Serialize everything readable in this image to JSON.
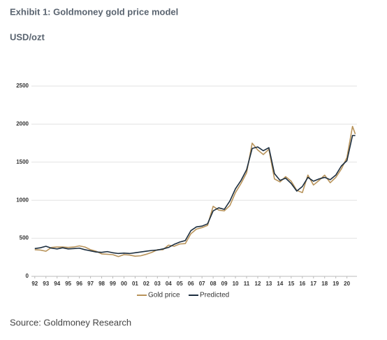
{
  "chart_data": {
    "type": "line",
    "title": "Exhibit 1: Goldmoney gold price model",
    "subtitle": "USD/ozt",
    "source": "Source: Goldmoney Research",
    "x": [
      1992,
      1992.5,
      1993,
      1993.5,
      1994,
      1994.5,
      1995,
      1995.5,
      1996,
      1996.5,
      1997,
      1997.5,
      1998,
      1998.5,
      1999,
      1999.5,
      2000,
      2000.5,
      2001,
      2001.5,
      2002,
      2002.5,
      2003,
      2003.5,
      2004,
      2004.5,
      2005,
      2005.5,
      2006,
      2006.5,
      2007,
      2007.5,
      2008,
      2008.5,
      2009,
      2009.5,
      2010,
      2010.5,
      2011,
      2011.5,
      2012,
      2012.5,
      2013,
      2013.5,
      2014,
      2014.5,
      2015,
      2015.5,
      2016,
      2016.5,
      2017,
      2017.5,
      2018,
      2018.5,
      2019,
      2019.5,
      2020,
      2020.5,
      2020.75
    ],
    "series": [
      {
        "name": "Gold price",
        "color": "#b8935a",
        "values": [
          350,
          345,
          330,
          380,
          385,
          385,
          380,
          385,
          400,
          385,
          350,
          330,
          295,
          290,
          285,
          260,
          285,
          280,
          265,
          270,
          290,
          315,
          350,
          350,
          410,
          395,
          425,
          430,
          560,
          620,
          640,
          670,
          920,
          870,
          860,
          930,
          1100,
          1220,
          1360,
          1750,
          1660,
          1600,
          1670,
          1280,
          1240,
          1310,
          1250,
          1130,
          1100,
          1330,
          1200,
          1260,
          1330,
          1230,
          1300,
          1410,
          1560,
          1970,
          1870
        ]
      },
      {
        "name": "Predicted",
        "color": "#1c2e3f",
        "values": [
          365,
          375,
          395,
          370,
          360,
          375,
          360,
          365,
          370,
          350,
          335,
          320,
          315,
          325,
          310,
          300,
          305,
          300,
          310,
          320,
          330,
          340,
          345,
          360,
          380,
          420,
          450,
          470,
          600,
          650,
          660,
          690,
          860,
          900,
          880,
          990,
          1150,
          1260,
          1400,
          1680,
          1700,
          1650,
          1690,
          1350,
          1260,
          1290,
          1220,
          1120,
          1180,
          1300,
          1250,
          1280,
          1300,
          1270,
          1330,
          1450,
          1520,
          1850,
          1850
        ]
      }
    ],
    "xlim": [
      1991.7,
      2020.9
    ],
    "xticks": [
      {
        "value": 1992,
        "label": "92"
      },
      {
        "value": 1993,
        "label": "93"
      },
      {
        "value": 1994,
        "label": "94"
      },
      {
        "value": 1995,
        "label": "95"
      },
      {
        "value": 1996,
        "label": "96"
      },
      {
        "value": 1997,
        "label": "97"
      },
      {
        "value": 1998,
        "label": "98"
      },
      {
        "value": 1999,
        "label": "99"
      },
      {
        "value": 2000,
        "label": "00"
      },
      {
        "value": 2001,
        "label": "01"
      },
      {
        "value": 2002,
        "label": "02"
      },
      {
        "value": 2003,
        "label": "03"
      },
      {
        "value": 2004,
        "label": "04"
      },
      {
        "value": 2005,
        "label": "05"
      },
      {
        "value": 2006,
        "label": "06"
      },
      {
        "value": 2007,
        "label": "07"
      },
      {
        "value": 2008,
        "label": "08"
      },
      {
        "value": 2009,
        "label": "09"
      },
      {
        "value": 2010,
        "label": "10"
      },
      {
        "value": 2011,
        "label": "11"
      },
      {
        "value": 2012,
        "label": "12"
      },
      {
        "value": 2013,
        "label": "13"
      },
      {
        "value": 2014,
        "label": "14"
      },
      {
        "value": 2015,
        "label": "15"
      },
      {
        "value": 2016,
        "label": "16"
      },
      {
        "value": 2017,
        "label": "17"
      },
      {
        "value": 2018,
        "label": "18"
      },
      {
        "value": 2019,
        "label": "19"
      },
      {
        "value": 2020,
        "label": "20"
      }
    ],
    "ylim": [
      0,
      2500
    ],
    "yticks": [
      0,
      500,
      1000,
      1500,
      2000,
      2500
    ],
    "grid": true,
    "legend": "bottom"
  }
}
